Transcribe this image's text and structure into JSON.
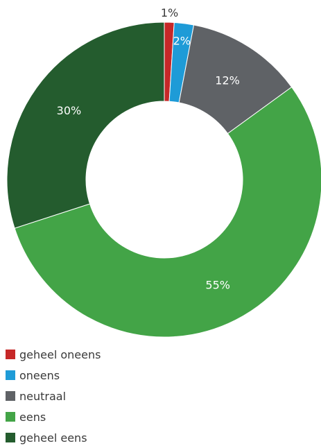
{
  "chart_data": {
    "type": "pie",
    "title": "",
    "categories": [
      "geheel oneens",
      "oneens",
      "neutraal",
      "eens",
      "geheel eens"
    ],
    "values": [
      1,
      2,
      12,
      55,
      30
    ],
    "labels": [
      "1%",
      "2%",
      "12%",
      "55%",
      "30%"
    ],
    "colors": [
      "#c62828",
      "#1e9bd7",
      "#5f6266",
      "#43a447",
      "#245c2e"
    ],
    "donut": true,
    "legend_position": "bottom-left"
  }
}
